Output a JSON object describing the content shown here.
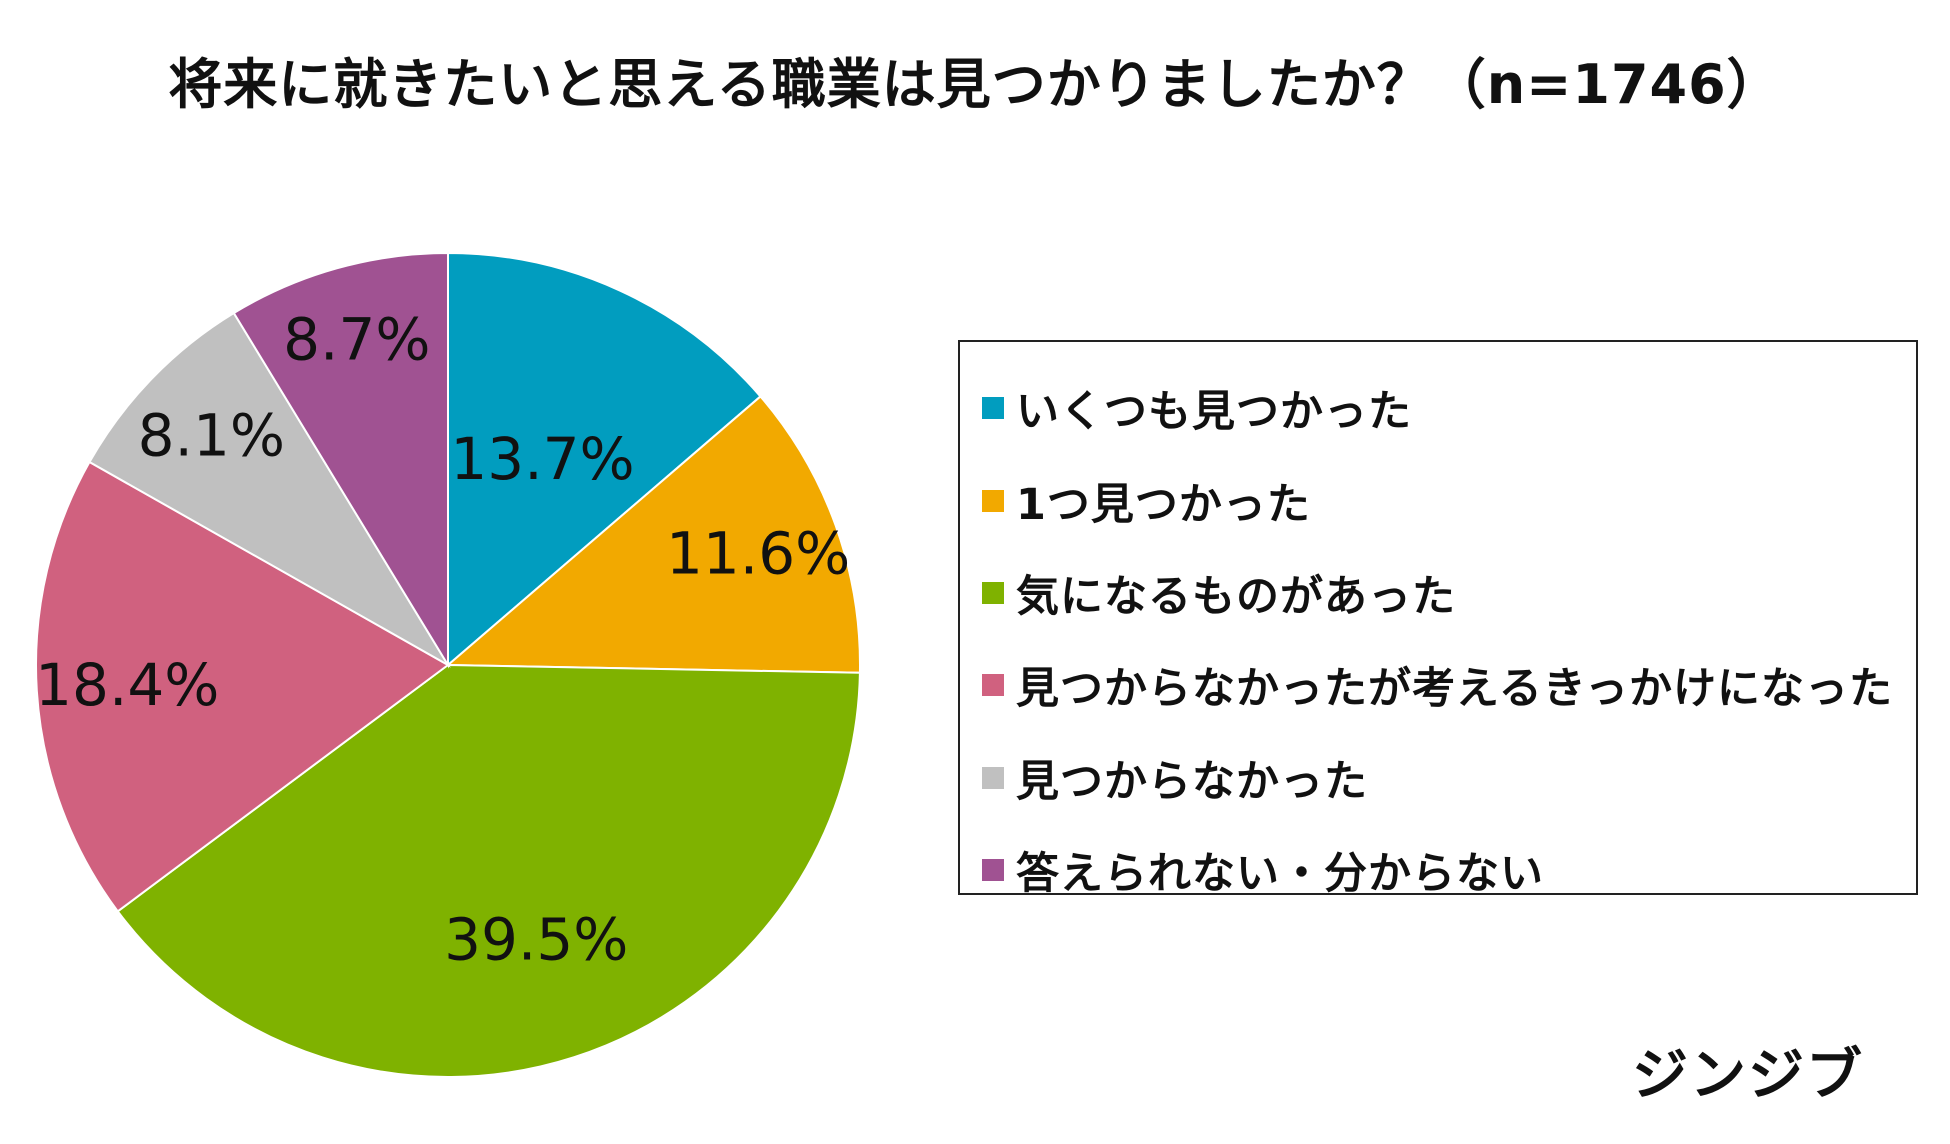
{
  "chart_data": {
    "type": "pie",
    "title": "将来に就きたいと思える職業は見つかりましたか？（n=1746）",
    "start_angle_deg": 0,
    "direction": "clockwise",
    "slices": [
      {
        "label": "いくつも見つかった",
        "value": 13.7,
        "display": "13.7%",
        "color": "#019DBF"
      },
      {
        "label": "1つ見つかった",
        "value": 11.6,
        "display": "11.6%",
        "color": "#F2A900"
      },
      {
        "label": "気になるものがあった",
        "value": 39.5,
        "display": "39.5%",
        "color": "#7FB200"
      },
      {
        "label": "見つからなかったが考えるきっかけになった",
        "value": 18.4,
        "display": "18.4%",
        "color": "#D0617F"
      },
      {
        "label": "見つからなかった",
        "value": 8.1,
        "display": "8.1%",
        "color": "#C0C0C0"
      },
      {
        "label": "答えられない・分からない",
        "value": 8.7,
        "display": "8.7%",
        "color": "#A05292"
      }
    ],
    "legend_position": "right"
  },
  "brand": {
    "name": "ジンジブ"
  }
}
